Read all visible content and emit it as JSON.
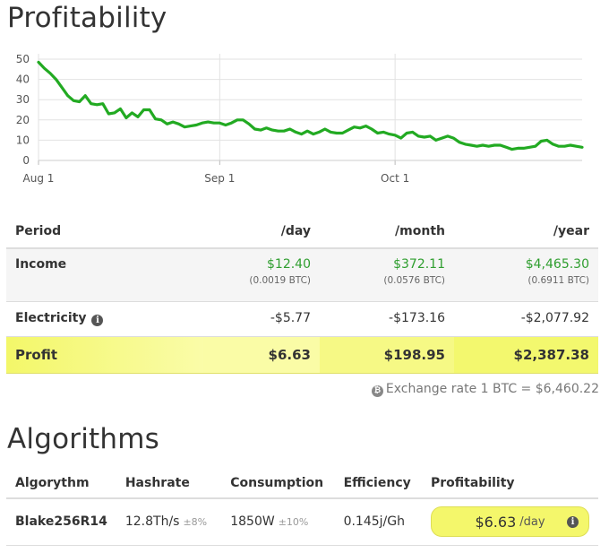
{
  "profitability": {
    "title": "Profitability"
  },
  "chart_data": {
    "type": "line",
    "title": "",
    "xlabel": "",
    "ylabel": "",
    "ylim": [
      0,
      50
    ],
    "yticks": [
      "0",
      "10",
      "20",
      "30",
      "40",
      "50"
    ],
    "xticks": [
      {
        "label": "Aug 1",
        "date": "2018-08-01"
      },
      {
        "label": "Sep 1",
        "date": "2018-09-01"
      },
      {
        "label": "Oct 1",
        "date": "2018-10-01"
      }
    ],
    "grid": true,
    "color": "#22aa22",
    "series": [
      {
        "values": [
          [
            "2018-08-01",
            48.5
          ],
          [
            "2018-08-02",
            45.5
          ],
          [
            "2018-08-03",
            43
          ],
          [
            "2018-08-04",
            40
          ],
          [
            "2018-08-05",
            36
          ],
          [
            "2018-08-06",
            32
          ],
          [
            "2018-08-07",
            29.5
          ],
          [
            "2018-08-08",
            29
          ],
          [
            "2018-08-09",
            32
          ],
          [
            "2018-08-10",
            28
          ],
          [
            "2018-08-11",
            27.5
          ],
          [
            "2018-08-12",
            28
          ],
          [
            "2018-08-13",
            23
          ],
          [
            "2018-08-14",
            23.5
          ],
          [
            "2018-08-15",
            25.5
          ],
          [
            "2018-08-16",
            21
          ],
          [
            "2018-08-17",
            23.5
          ],
          [
            "2018-08-18",
            21.5
          ],
          [
            "2018-08-19",
            25
          ],
          [
            "2018-08-20",
            25
          ],
          [
            "2018-08-21",
            20.5
          ],
          [
            "2018-08-22",
            20
          ],
          [
            "2018-08-23",
            18
          ],
          [
            "2018-08-24",
            19
          ],
          [
            "2018-08-25",
            18
          ],
          [
            "2018-08-26",
            16.5
          ],
          [
            "2018-08-27",
            17
          ],
          [
            "2018-08-28",
            17.5
          ],
          [
            "2018-08-29",
            18.5
          ],
          [
            "2018-08-30",
            19
          ],
          [
            "2018-08-31",
            18.5
          ],
          [
            "2018-09-01",
            18.5
          ],
          [
            "2018-09-02",
            17.5
          ],
          [
            "2018-09-03",
            18.5
          ],
          [
            "2018-09-04",
            20
          ],
          [
            "2018-09-05",
            20
          ],
          [
            "2018-09-06",
            18
          ],
          [
            "2018-09-07",
            15.5
          ],
          [
            "2018-09-08",
            15
          ],
          [
            "2018-09-09",
            16
          ],
          [
            "2018-09-10",
            15
          ],
          [
            "2018-09-11",
            14.5
          ],
          [
            "2018-09-12",
            14.5
          ],
          [
            "2018-09-13",
            15.5
          ],
          [
            "2018-09-14",
            14
          ],
          [
            "2018-09-15",
            13
          ],
          [
            "2018-09-16",
            14.5
          ],
          [
            "2018-09-17",
            13
          ],
          [
            "2018-09-18",
            14
          ],
          [
            "2018-09-19",
            15.5
          ],
          [
            "2018-09-20",
            14
          ],
          [
            "2018-09-21",
            13.5
          ],
          [
            "2018-09-22",
            13.5
          ],
          [
            "2018-09-23",
            15
          ],
          [
            "2018-09-24",
            16.5
          ],
          [
            "2018-09-25",
            16
          ],
          [
            "2018-09-26",
            17
          ],
          [
            "2018-09-27",
            15.5
          ],
          [
            "2018-09-28",
            13.5
          ],
          [
            "2018-09-29",
            14
          ],
          [
            "2018-09-30",
            13
          ],
          [
            "2018-10-01",
            12.5
          ],
          [
            "2018-10-02",
            11
          ],
          [
            "2018-10-03",
            13.5
          ],
          [
            "2018-10-04",
            14
          ],
          [
            "2018-10-05",
            12
          ],
          [
            "2018-10-06",
            11.5
          ],
          [
            "2018-10-07",
            12
          ],
          [
            "2018-10-08",
            10
          ],
          [
            "2018-10-09",
            11
          ],
          [
            "2018-10-10",
            12
          ],
          [
            "2018-10-11",
            11
          ],
          [
            "2018-10-12",
            9
          ],
          [
            "2018-10-13",
            8
          ],
          [
            "2018-10-14",
            7.5
          ],
          [
            "2018-10-15",
            7
          ],
          [
            "2018-10-16",
            7.5
          ],
          [
            "2018-10-17",
            7
          ],
          [
            "2018-10-18",
            7.5
          ],
          [
            "2018-10-19",
            7.5
          ],
          [
            "2018-10-20",
            6.5
          ],
          [
            "2018-10-21",
            5.5
          ],
          [
            "2018-10-22",
            6
          ],
          [
            "2018-10-23",
            6
          ],
          [
            "2018-10-24",
            6.5
          ],
          [
            "2018-10-25",
            7
          ],
          [
            "2018-10-26",
            9.5
          ],
          [
            "2018-10-27",
            10
          ],
          [
            "2018-10-28",
            8
          ],
          [
            "2018-10-29",
            7
          ],
          [
            "2018-10-30",
            7
          ],
          [
            "2018-10-31",
            7.5
          ],
          [
            "2018-11-01",
            7
          ],
          [
            "2018-11-02",
            6.5
          ]
        ]
      }
    ]
  },
  "profit_table": {
    "headers": [
      "Period",
      "/day",
      "/month",
      "/year"
    ],
    "income": {
      "label": "Income",
      "day": "$12.40",
      "day_btc": "(0.0019 BTC)",
      "month": "$372.11",
      "month_btc": "(0.0576 BTC)",
      "year": "$4,465.30",
      "year_btc": "(0.6911 BTC)"
    },
    "electricity": {
      "label": "Electricity",
      "icon": "info-icon",
      "day": "-$5.77",
      "month": "-$173.16",
      "year": "-$2,077.92"
    },
    "profit": {
      "label": "Profit",
      "day": "$6.63",
      "month": "$198.95",
      "year": "$2,387.38",
      "highlight_color": "#f3f86e"
    }
  },
  "exchange": {
    "icon": "bitcoin-icon",
    "icon_glyph": "₿",
    "text": "Exchange rate 1 BTC = $6,460.22"
  },
  "algorithms": {
    "title": "Algorithms",
    "headers": [
      "Algorythm",
      "Hashrate",
      "Consumption",
      "Efficiency",
      "Profitability"
    ],
    "row": {
      "name": "Blake256R14",
      "hashrate": "12.8Th/s",
      "hashrate_tol": "±8%",
      "consumption": "1850W",
      "consumption_tol": "±10%",
      "efficiency": "0.145j/Gh",
      "profitability": "$6.63",
      "profitability_unit": "/day"
    }
  },
  "colors": {
    "positive": "#2f9e2f",
    "negative": "#b01c1c",
    "chart_line": "#22aa22"
  }
}
